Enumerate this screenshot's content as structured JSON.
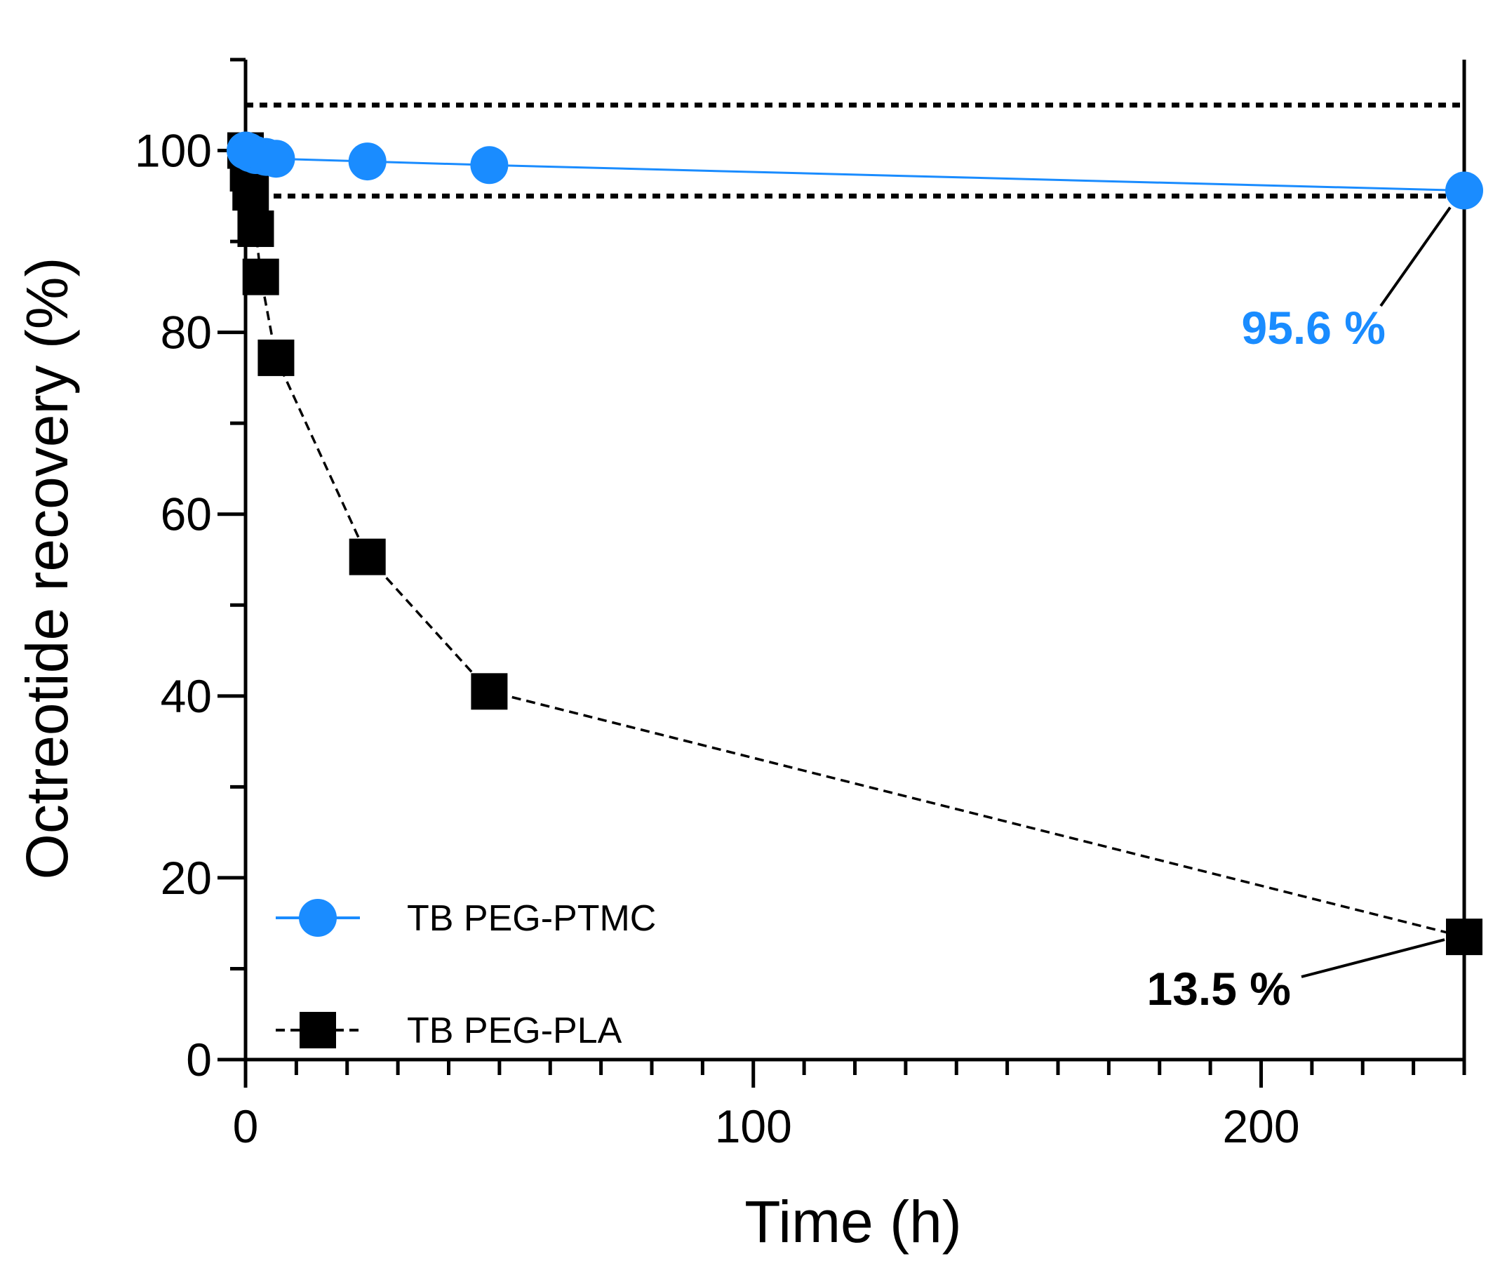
{
  "chart_data": {
    "type": "line",
    "title": "",
    "xlabel": "Time (h)",
    "ylabel": "Octreotide recovery (%)",
    "xlim": [
      0,
      240
    ],
    "ylim": [
      0,
      110
    ],
    "x_ticks": [
      0,
      100,
      200
    ],
    "x_tick_labels": [
      "0",
      "100",
      "200"
    ],
    "y_ticks": [
      0,
      20,
      40,
      60,
      80,
      100
    ],
    "y_tick_labels": [
      "0",
      "20",
      "40",
      "60",
      "80",
      "100"
    ],
    "x_minor_step": 10,
    "y_minor_step": 10,
    "grid": false,
    "legend_position": "bottom-left",
    "series": [
      {
        "name": "TB PEG-PTMC",
        "marker": "circle",
        "line_style": "solid",
        "color": "#1a8cff",
        "x": [
          0,
          0.5,
          1,
          2,
          4,
          6,
          24,
          48,
          240
        ],
        "y": [
          100,
          99.9,
          99.7,
          99.5,
          99.3,
          99.1,
          98.8,
          98.4,
          95.6
        ]
      },
      {
        "name": "TB PEG-PLA",
        "marker": "square",
        "line_style": "dashed",
        "color": "#000000",
        "x": [
          0,
          0.5,
          1,
          2,
          3,
          6,
          24,
          48,
          240
        ],
        "y": [
          100,
          97.5,
          95.4,
          91.4,
          86.1,
          77.2,
          55.3,
          40.5,
          13.5
        ]
      }
    ],
    "reference_lines": [
      {
        "axis": "y",
        "value": 105,
        "style": "dotted",
        "color": "#000000"
      },
      {
        "axis": "y",
        "value": 95,
        "style": "dotted",
        "color": "#000000"
      }
    ],
    "annotations": [
      {
        "text": "95.6 %",
        "series": "TB PEG-PTMC",
        "x": 240,
        "y": 95.6,
        "color": "#1a8cff"
      },
      {
        "text": "13.5 %",
        "series": "TB PEG-PLA",
        "x": 240,
        "y": 13.5,
        "color": "#000000"
      }
    ]
  }
}
